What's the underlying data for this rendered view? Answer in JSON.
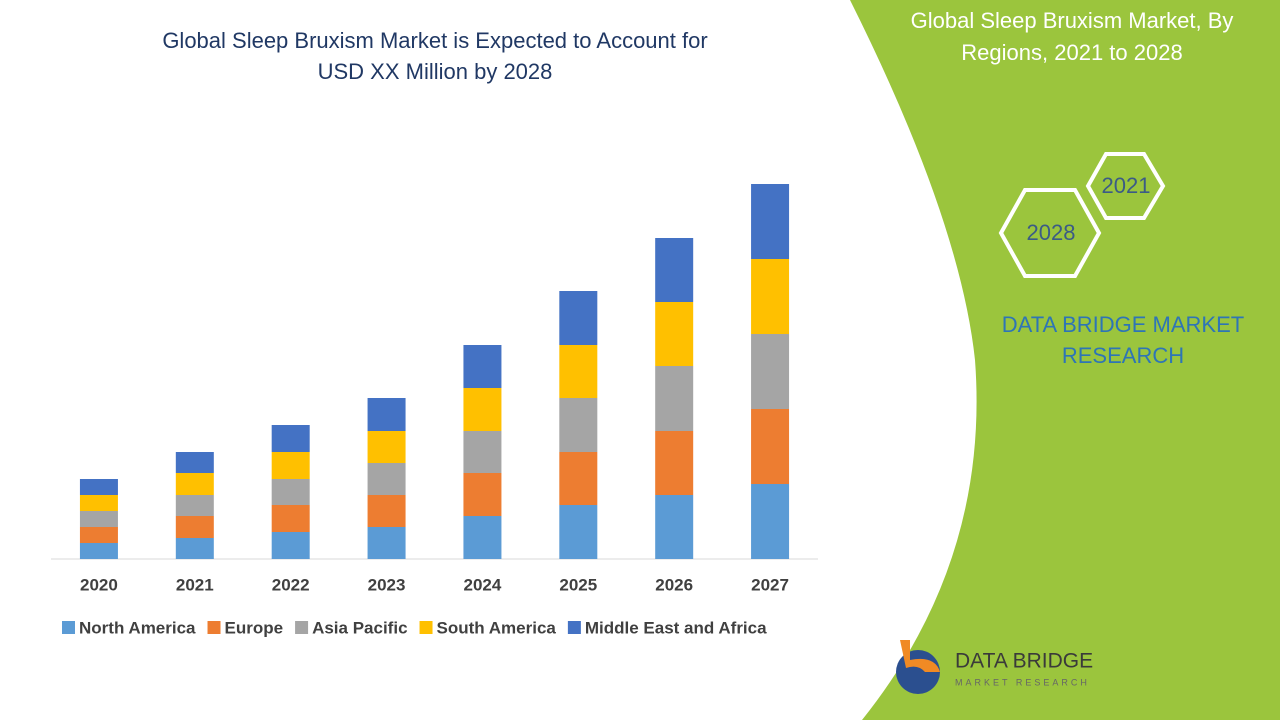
{
  "chart_data": {
    "type": "stacked_bar",
    "title_lines": [
      "Global Sleep Bruxism Market is Expected to Account for",
      "USD XX Million by 2028"
    ],
    "categories": [
      "2020",
      "2021",
      "2022",
      "2023",
      "2024",
      "2025",
      "2026",
      "2027"
    ],
    "series": [
      {
        "name": "North America",
        "color": "#5b9bd5",
        "values": [
          16,
          21,
          27,
          32,
          43,
          54,
          64,
          75
        ]
      },
      {
        "name": "Europe",
        "color": "#ed7d31",
        "values": [
          16,
          22,
          27,
          32,
          43,
          53,
          64,
          75
        ]
      },
      {
        "name": "Asia Pacific",
        "color": "#a5a5a5",
        "values": [
          16,
          21,
          26,
          32,
          42,
          54,
          65,
          75
        ]
      },
      {
        "name": "South America",
        "color": "#ffc000",
        "values": [
          16,
          22,
          27,
          32,
          43,
          53,
          64,
          75
        ]
      },
      {
        "name": "Middle East and Africa",
        "color": "#4472c4",
        "values": [
          16,
          21,
          27,
          33,
          43,
          54,
          64,
          75
        ]
      }
    ],
    "ylim": [
      0,
      480
    ],
    "grid": false,
    "legend": "bottom"
  },
  "panel": {
    "title_lines": [
      "Global Sleep Bruxism Market, By",
      "Regions, 2021 to 2028"
    ],
    "hex_labels": [
      "2021",
      "2028"
    ],
    "brand_lines": [
      "DATA BRIDGE MARKET",
      "RESEARCH"
    ]
  },
  "logo": {
    "name": "DATA BRIDGE",
    "tagline": "MARKET RESEARCH"
  }
}
